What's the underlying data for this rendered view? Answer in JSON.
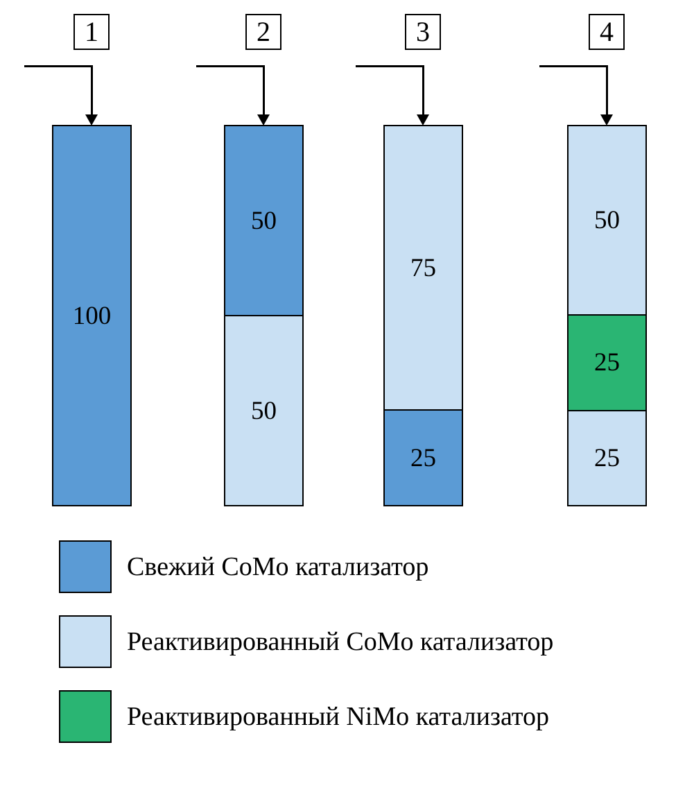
{
  "columns": [
    {
      "number": "1",
      "segments": [
        {
          "value": "100",
          "type": "fresh_como",
          "percent": 100
        }
      ]
    },
    {
      "number": "2",
      "segments": [
        {
          "value": "50",
          "type": "fresh_como",
          "percent": 50
        },
        {
          "value": "50",
          "type": "react_como",
          "percent": 50
        }
      ]
    },
    {
      "number": "3",
      "segments": [
        {
          "value": "75",
          "type": "react_como",
          "percent": 75
        },
        {
          "value": "25",
          "type": "fresh_como",
          "percent": 25
        }
      ]
    },
    {
      "number": "4",
      "segments": [
        {
          "value": "50",
          "type": "react_como",
          "percent": 50
        },
        {
          "value": "25",
          "type": "react_nimo",
          "percent": 25
        },
        {
          "value": "25",
          "type": "react_como",
          "percent": 25
        }
      ]
    }
  ],
  "legend": [
    {
      "type": "fresh_como",
      "label": "Свежий CoMo катализатор"
    },
    {
      "type": "react_como",
      "label": "Реактивированный CoMo катализатор"
    },
    {
      "type": "react_nimo",
      "label": "Реактивированный NiMo катализатор"
    }
  ],
  "colors": {
    "fresh_como": "#5b9bd5",
    "react_como": "#c9e0f3",
    "react_nimo": "#2ab573"
  }
}
